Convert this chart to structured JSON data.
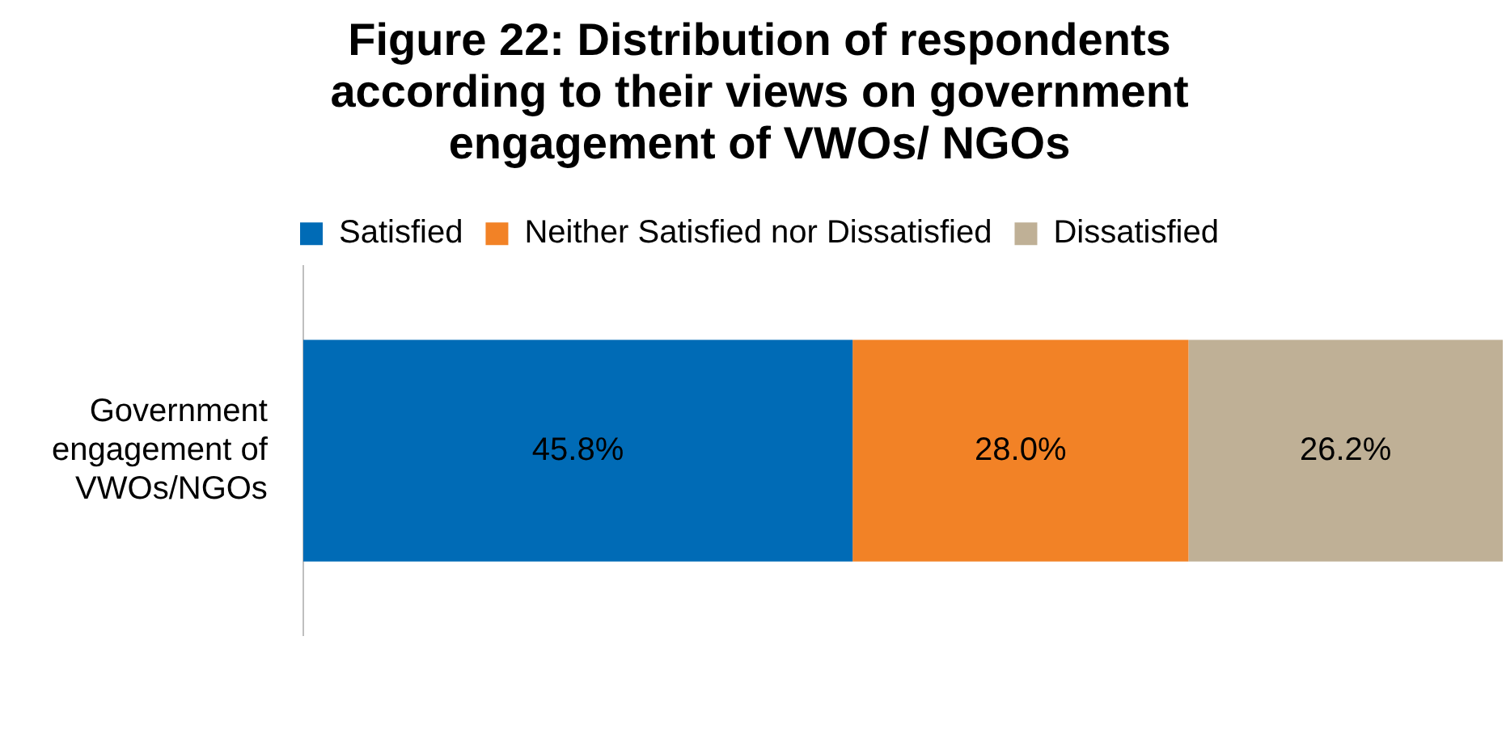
{
  "chart_data": {
    "type": "bar",
    "orientation": "horizontal",
    "stacked": true,
    "title": "Figure 22: Distribution of respondents according to their views on government engagement of VWOs/ NGOs",
    "categories": [
      "Government engagement of VWOs/NGOs"
    ],
    "series": [
      {
        "name": "Satisfied",
        "color": "#006bb6",
        "values": [
          45.8
        ],
        "value_labels": [
          "45.8%"
        ]
      },
      {
        "name": "Neither Satisfied nor Dissatisfied",
        "color": "#f28226",
        "values": [
          28.0
        ],
        "value_labels": [
          "28.0%"
        ]
      },
      {
        "name": "Dissatisfied",
        "color": "#bfb096",
        "values": [
          26.2
        ],
        "value_labels": [
          "26.2%"
        ]
      }
    ],
    "xlim": [
      0,
      100
    ],
    "tick_labels": "y",
    "grid": false,
    "legend": "top"
  }
}
